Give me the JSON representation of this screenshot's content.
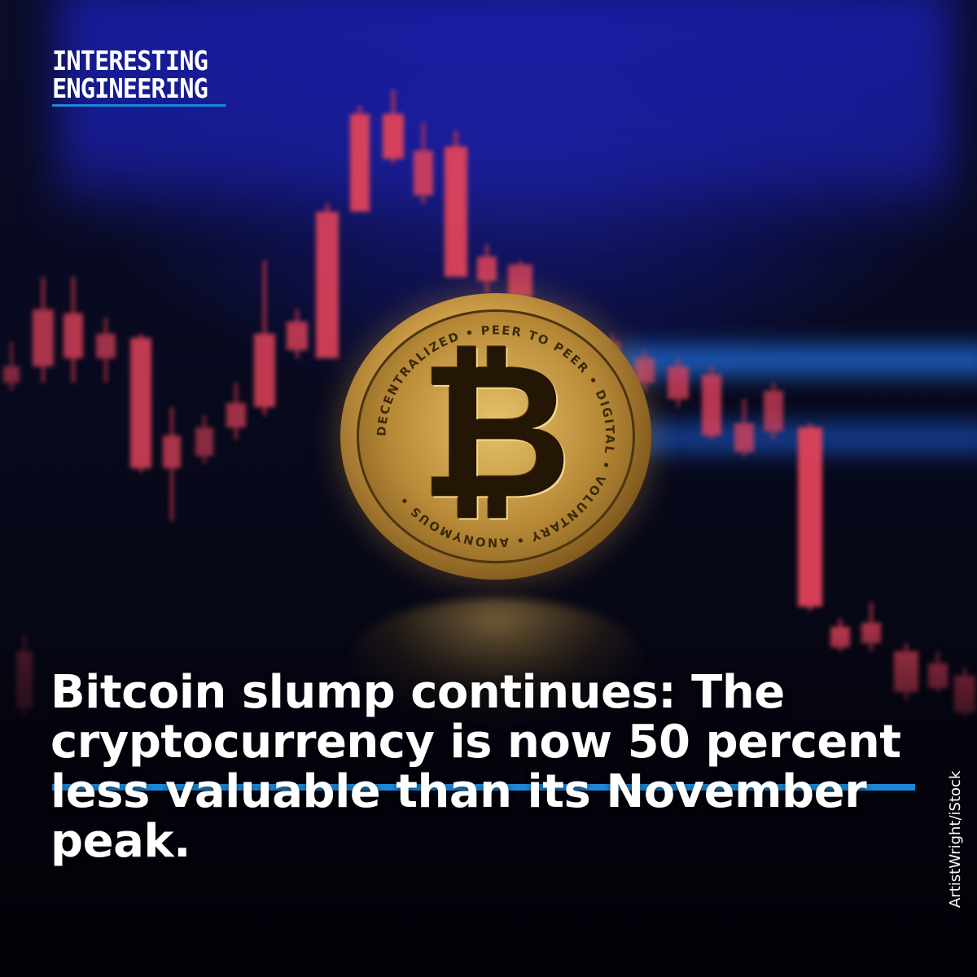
{
  "logo": {
    "line1": "INTERESTING",
    "line2": "ENGINEERING"
  },
  "headline": {
    "line1": "Bitcoin slump continues: The",
    "line2": "cryptocurrency is now 50 percent",
    "line3": "less valuable than its November",
    "line4": "peak."
  },
  "credit": "ArtistWright/iStock",
  "coin": {
    "symbol": "₿",
    "ring_text": "DECENTRALIZED • PEER TO PEER • DIGITAL • VOLUNTARY • ANONYMOUS •"
  },
  "colors": {
    "accent": "#1e88d8",
    "candle": "#e0435a",
    "screen": "#1a1fb0",
    "coin_gold": "#d8a84c"
  }
}
